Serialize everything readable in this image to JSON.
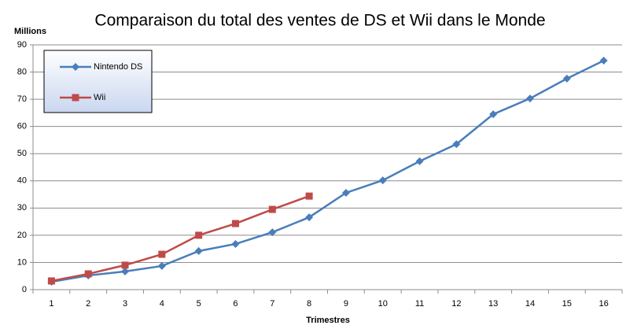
{
  "chart_data": {
    "type": "line",
    "title": "Comparaison du total des ventes de DS et Wii dans le Monde",
    "y_label": "Millions",
    "x_label": "Trimestres",
    "categories": [
      "1",
      "2",
      "3",
      "4",
      "5",
      "6",
      "7",
      "8",
      "9",
      "10",
      "11",
      "12",
      "13",
      "14",
      "15",
      "16"
    ],
    "series": [
      {
        "name": "Nintendo DS",
        "color": "#4a7ebb",
        "marker": "diamond",
        "values": [
          2.9,
          5.2,
          6.7,
          8.7,
          14.2,
          16.8,
          21.1,
          26.6,
          35.6,
          40.2,
          47.2,
          53.5,
          64.5,
          70.3,
          77.6,
          84.2
        ]
      },
      {
        "name": "Wii",
        "color": "#be4b48",
        "marker": "square",
        "values": [
          3.2,
          5.8,
          9.0,
          13.0,
          20.0,
          24.3,
          29.5,
          34.4,
          null,
          null,
          null,
          null,
          null,
          null,
          null,
          null
        ]
      }
    ],
    "ylim": [
      0,
      90
    ],
    "yticks": [
      0,
      10,
      20,
      30,
      40,
      50,
      60,
      70,
      80,
      90
    ],
    "grid": true,
    "legend": "upper left"
  }
}
